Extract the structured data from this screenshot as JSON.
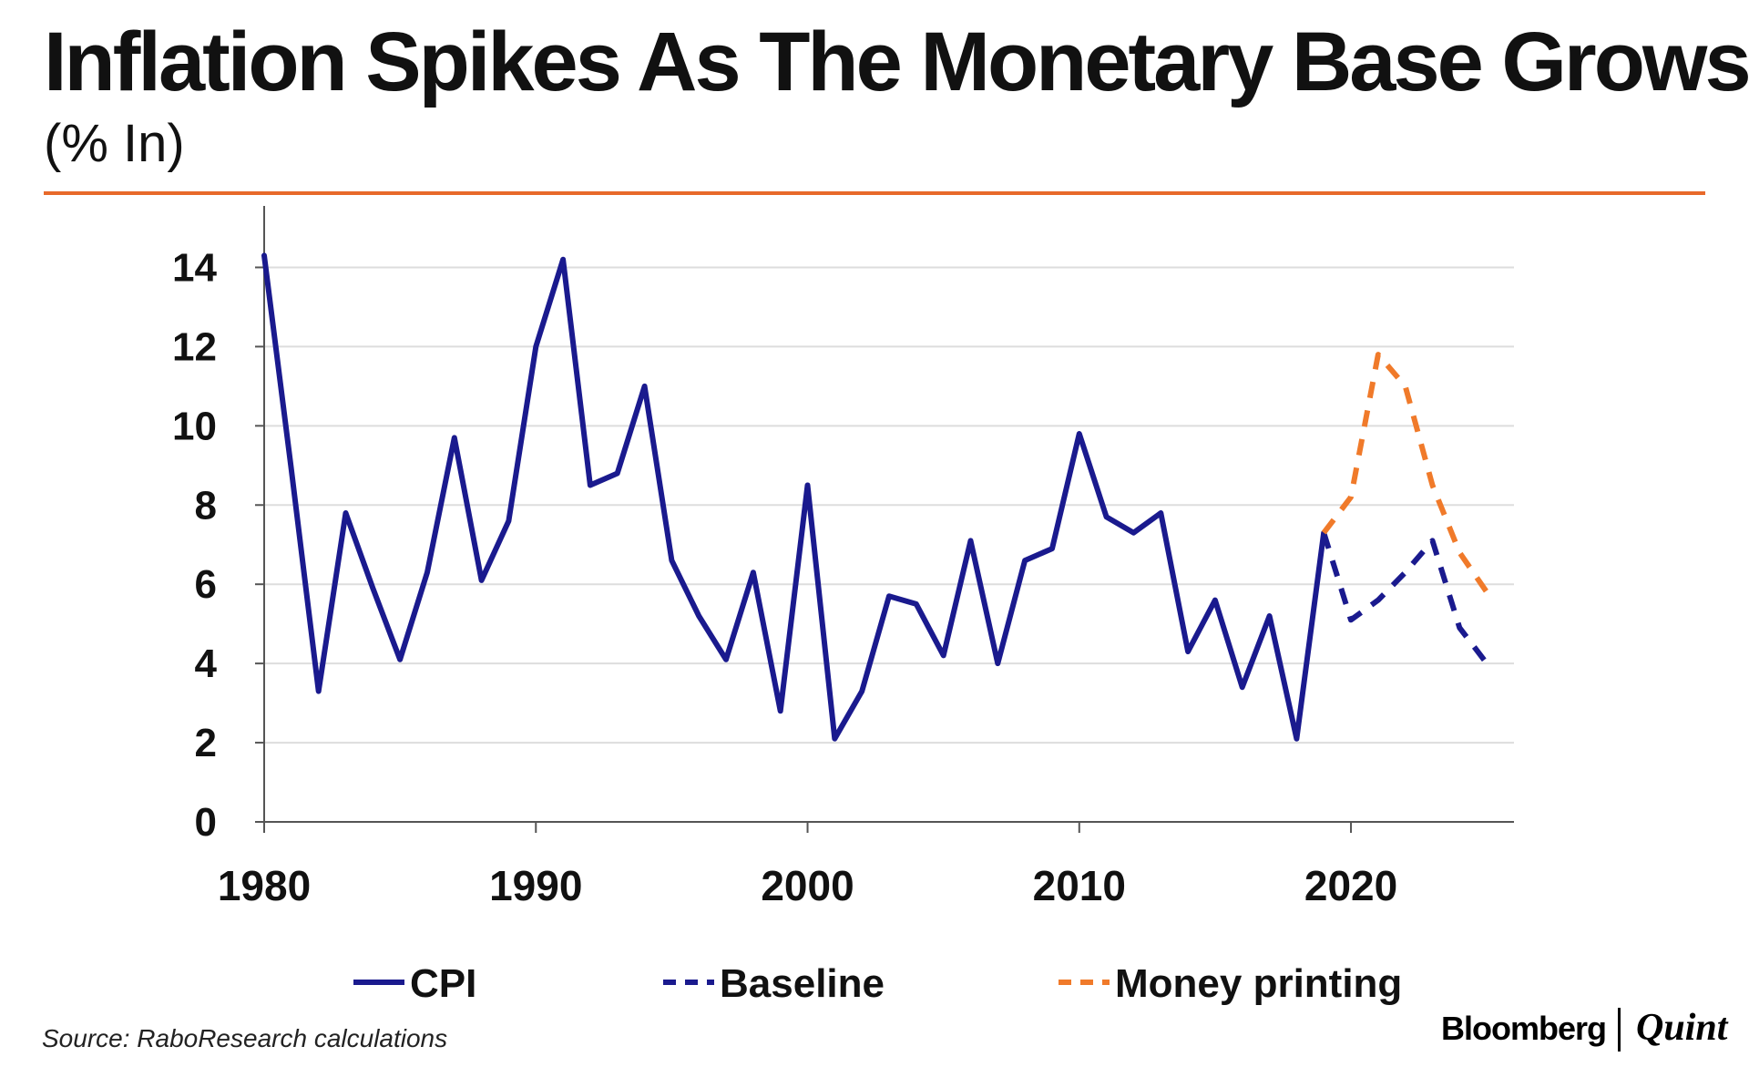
{
  "header": {
    "title": "Inflation Spikes As The Monetary Base Grows",
    "subtitle": "(% In)"
  },
  "footer": {
    "source": "Source: RaboResearch calculations",
    "logo_left": "Bloomberg",
    "logo_right": "Quint"
  },
  "colors": {
    "accent": "#E8692A",
    "cpi": "#1A1A8E",
    "baseline": "#1A1A8E",
    "money_printing": "#F07A2A",
    "grid": "#DDDDDD",
    "axis": "#555555"
  },
  "chart_data": {
    "type": "line",
    "title": "Inflation Spikes As The Monetary Base Grows",
    "subtitle": "(% In)",
    "xlabel": "",
    "ylabel": "",
    "xlim": [
      1980,
      2026
    ],
    "ylim": [
      0,
      15
    ],
    "x_ticks": [
      1980,
      1990,
      2000,
      2010,
      2020
    ],
    "y_ticks": [
      0,
      2,
      4,
      6,
      8,
      10,
      12,
      14
    ],
    "x_tick_labels": [
      "1980",
      "1990",
      "2000",
      "2010",
      "2020"
    ],
    "y_tick_labels": [
      "0",
      "2",
      "4",
      "6",
      "8",
      "10",
      "12",
      "14"
    ],
    "grid": true,
    "legend_position": "bottom",
    "series": [
      {
        "name": "CPI",
        "style": "solid",
        "x": [
          1980,
          1981,
          1982,
          1983,
          1984,
          1985,
          1986,
          1987,
          1988,
          1989,
          1990,
          1991,
          1992,
          1993,
          1994,
          1995,
          1996,
          1997,
          1998,
          1999,
          2000,
          2001,
          2002,
          2003,
          2004,
          2005,
          2006,
          2007,
          2008,
          2009,
          2010,
          2011,
          2012,
          2013,
          2014,
          2015,
          2016,
          2017,
          2018,
          2019
        ],
        "values": [
          14.3,
          8.9,
          3.3,
          7.8,
          5.9,
          4.1,
          6.3,
          9.7,
          6.1,
          7.6,
          12.0,
          14.2,
          8.5,
          8.8,
          11.0,
          6.6,
          5.2,
          4.1,
          6.3,
          2.8,
          8.5,
          2.1,
          3.3,
          5.7,
          5.5,
          4.2,
          7.1,
          4.0,
          6.6,
          6.9,
          9.8,
          7.7,
          7.3,
          7.8,
          4.3,
          5.6,
          3.4,
          5.2,
          2.1,
          7.3
        ]
      },
      {
        "name": "Baseline",
        "style": "dashed",
        "x": [
          2019,
          2020,
          2021,
          2022,
          2023,
          2024,
          2025
        ],
        "values": [
          7.3,
          5.1,
          5.6,
          6.3,
          7.1,
          4.9,
          4.0
        ]
      },
      {
        "name": "Money printing",
        "style": "dashed",
        "x": [
          2019,
          2020,
          2021,
          2022,
          2023,
          2024,
          2025
        ],
        "values": [
          7.3,
          8.2,
          11.8,
          11.0,
          8.5,
          6.8,
          5.8
        ]
      }
    ]
  }
}
